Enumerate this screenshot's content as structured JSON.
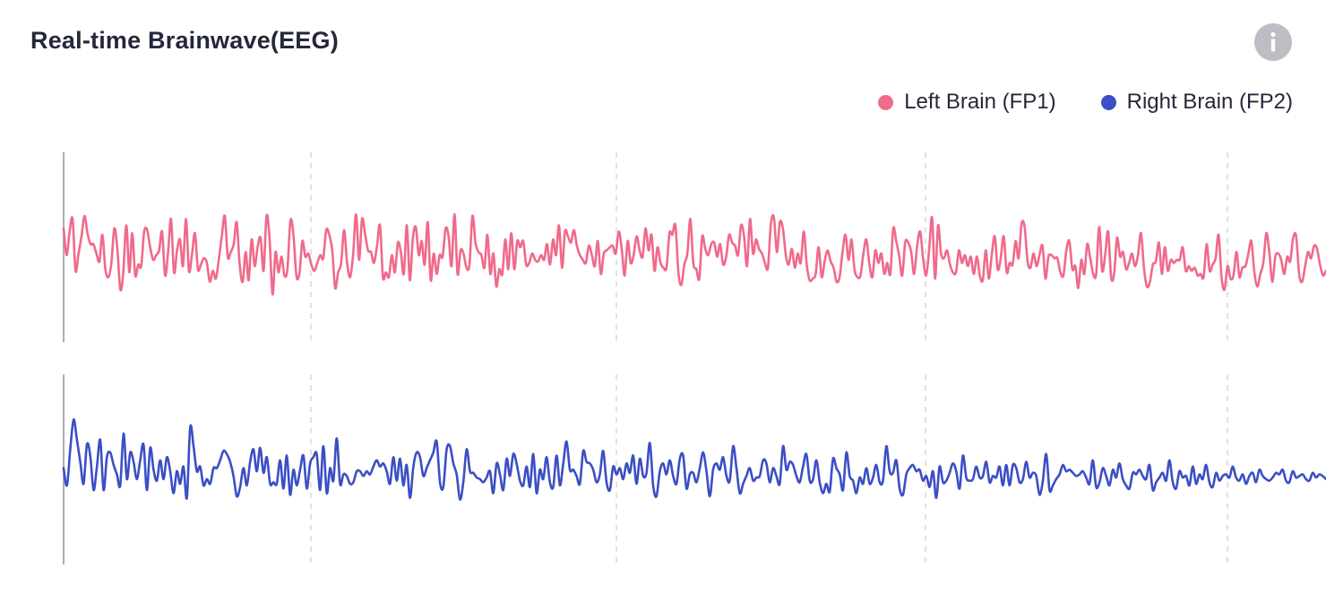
{
  "header": {
    "title": "Real-time Brainwave(EEG)",
    "info_icon": "info-icon"
  },
  "colors": {
    "left": "#f06a8a",
    "right": "#3b4fc4",
    "grid": "#d4d4d8",
    "axis": "#9a9aa0",
    "info_bg": "#bdbdc3"
  },
  "chart_data": {
    "type": "line",
    "title": "Real-time Brainwave(EEG)",
    "legend_position": "top-right",
    "grid": "vertical dashed",
    "x_ticks": 4,
    "series": [
      {
        "name": "Left Brain (FP1)",
        "channel": "FP1",
        "color": "#f06a8a",
        "values": [
          12,
          -5,
          10,
          18,
          -15,
          -4,
          7,
          20,
          9,
          2,
          2,
          -4,
          -9,
          8,
          -14,
          -19,
          -10,
          12,
          -1,
          -27,
          -16,
          14,
          -16,
          9,
          -18,
          -11,
          -12,
          10,
          11,
          0,
          -8,
          -5,
          -2,
          10,
          -18,
          -3,
          18,
          -16,
          -2,
          5,
          -12,
          18,
          -15,
          -5,
          9,
          -14,
          -11,
          -7,
          -10,
          -22,
          -15,
          -20,
          -8,
          7,
          20,
          -6,
          -3,
          2,
          16,
          -11,
          -22,
          -3,
          -21,
          5,
          -12,
          0,
          6,
          -15,
          20,
          6,
          -30,
          -3,
          -16,
          -6,
          -18,
          -14,
          17,
          8,
          -18,
          -17,
          4,
          -6,
          -4,
          -11,
          -15,
          -10,
          -5,
          -7,
          11,
          8,
          -2,
          -26,
          -16,
          -10,
          11,
          -10,
          -19,
          -5,
          21,
          -8,
          18,
          9,
          -2,
          -3,
          -10,
          1,
          14,
          -19,
          -16,
          -19,
          -5,
          -16,
          3,
          -3,
          -17,
          14,
          -21,
          5,
          13,
          -5,
          4,
          -11,
          16,
          -21,
          -4,
          -17,
          -5,
          -6,
          12,
          7,
          -12,
          21,
          -17,
          -2,
          -4,
          -13,
          -11,
          20,
          3,
          -3,
          -5,
          -13,
          8,
          -17,
          -4,
          -25,
          -14,
          -17,
          5,
          -14,
          9,
          -14,
          4,
          0,
          4,
          -11,
          -10,
          -4,
          -8,
          -9,
          -5,
          -8,
          2,
          -11,
          5,
          -5,
          14,
          -13,
          10,
          7,
          3,
          11,
          1,
          -5,
          -8,
          -10,
          1,
          -5,
          -12,
          4,
          -17,
          -4,
          -2,
          0,
          1,
          -4,
          10,
          -1,
          -18,
          4,
          -10,
          -5,
          7,
          -2,
          -6,
          12,
          -2,
          8,
          -15,
          0,
          -10,
          -13,
          -13,
          9,
          8,
          14,
          -16,
          -24,
          -11,
          -4,
          18,
          -10,
          -14,
          -20,
          7,
          -1,
          -5,
          2,
          3,
          -6,
          2,
          -11,
          -6,
          8,
          3,
          1,
          -5,
          14,
          7,
          -12,
          18,
          -4,
          5,
          -1,
          -4,
          -10,
          -13,
          15,
          19,
          -3,
          16,
          12,
          -5,
          -11,
          -1,
          -13,
          -4,
          -10,
          10,
          -11,
          -21,
          -20,
          -17,
          0,
          -19,
          -9,
          -2,
          -9,
          -13,
          -22,
          -19,
          -3,
          8,
          -8,
          5,
          -14,
          -19,
          -18,
          -4,
          5,
          -11,
          -19,
          -2,
          -10,
          -4,
          -17,
          -10,
          -17,
          12,
          4,
          -6,
          -18,
          3,
          3,
          -3,
          -17,
          1,
          10,
          -7,
          -18,
          -2,
          19,
          -20,
          14,
          -4,
          -7,
          -2,
          -11,
          -16,
          -16,
          -2,
          -10,
          -5,
          -12,
          -6,
          -17,
          -6,
          -18,
          -21,
          -2,
          -20,
          -5,
          7,
          -14,
          -7,
          7,
          -16,
          -10,
          -11,
          4,
          -7,
          15,
          13,
          -9,
          -13,
          -4,
          -12,
          -5,
          1,
          -20,
          -6,
          -5,
          -7,
          -7,
          -16,
          -18,
          -2,
          4,
          -14,
          -12,
          -26,
          -8,
          -17,
          2,
          -7,
          -17,
          -17,
          13,
          -15,
          -5,
          10,
          -19,
          -17,
          6,
          -6,
          -3,
          -14,
          -10,
          -4,
          -12,
          -5,
          9,
          -13,
          -25,
          -22,
          -11,
          -9,
          3,
          -17,
          0,
          -15,
          -8,
          -10,
          -8,
          -8,
          0,
          -15,
          -12,
          -15,
          -13,
          -18,
          -17,
          -19,
          2,
          -15,
          -11,
          -7,
          8,
          -19,
          -27,
          -12,
          -20,
          -18,
          -3,
          -19,
          -13,
          -12,
          -4,
          4,
          -16,
          -25,
          -17,
          -10,
          9,
          -3,
          -22,
          -6,
          -4,
          -8,
          -17,
          -6,
          -9,
          6,
          7,
          -17,
          -22,
          -12,
          -3,
          -7,
          1,
          -1,
          -11,
          -18,
          -15
        ]
      },
      {
        "name": "Right Brain (FP2)",
        "channel": "FP2",
        "color": "#3b4fc4",
        "values": [
          -6,
          -17,
          6,
          25,
          12,
          -2,
          -16,
          9,
          2,
          -20,
          -5,
          12,
          -20,
          1,
          4,
          -4,
          -10,
          -17,
          16,
          -13,
          4,
          -2,
          -13,
          -1,
          9,
          -20,
          7,
          -7,
          -14,
          -1,
          -13,
          1,
          -8,
          -22,
          -8,
          -16,
          -5,
          -25,
          20,
          8,
          -8,
          -5,
          -17,
          -13,
          -16,
          -6,
          -6,
          -1,
          5,
          3,
          -2,
          -11,
          -24,
          -18,
          -6,
          -17,
          -2,
          6,
          -8,
          7,
          -9,
          1,
          -16,
          -15,
          -16,
          -1,
          -19,
          2,
          -23,
          -7,
          -17,
          -7,
          2,
          -19,
          -3,
          1,
          3,
          -20,
          8,
          -22,
          -6,
          -14,
          13,
          -16,
          -10,
          -11,
          -16,
          -15,
          -8,
          -8,
          -11,
          -8,
          -10,
          -5,
          -1,
          -5,
          -3,
          -8,
          -16,
          1,
          -14,
          0,
          -17,
          -4,
          -25,
          -5,
          4,
          1,
          -11,
          -6,
          -1,
          4,
          11,
          -15,
          -18,
          6,
          8,
          -3,
          -10,
          -26,
          -15,
          6,
          -8,
          -9,
          -12,
          -13,
          -15,
          -12,
          -8,
          -22,
          -3,
          -10,
          -20,
          0,
          -11,
          3,
          -3,
          -14,
          -17,
          -5,
          -18,
          3,
          -22,
          -7,
          -13,
          1,
          -15,
          -18,
          2,
          -17,
          -3,
          11,
          -7,
          -7,
          -11,
          -16,
          5,
          -2,
          -3,
          -7,
          -15,
          -10,
          5,
          -15,
          -20,
          -5,
          -10,
          -6,
          -13,
          -3,
          -9,
          2,
          -16,
          0,
          -11,
          -9,
          10,
          -17,
          -24,
          -8,
          -3,
          -10,
          -1,
          -11,
          -16,
          0,
          2,
          -19,
          -10,
          -9,
          -15,
          -6,
          4,
          -8,
          -24,
          -7,
          -3,
          -7,
          1,
          -11,
          -14,
          8,
          -6,
          -22,
          -16,
          -11,
          -6,
          -14,
          -12,
          -11,
          -1,
          -3,
          -15,
          -6,
          -11,
          -16,
          8,
          -7,
          -2,
          -4,
          -11,
          -15,
          -5,
          3,
          -14,
          -13,
          -1,
          -15,
          -22,
          -16,
          -21,
          0,
          -6,
          -10,
          -20,
          4,
          -11,
          -14,
          -22,
          -12,
          -16,
          -6,
          -16,
          -12,
          -4,
          -15,
          -14,
          8,
          -8,
          -9,
          -1,
          -19,
          -23,
          -10,
          -6,
          -4,
          -8,
          -7,
          -14,
          -11,
          -18,
          -8,
          -25,
          -5,
          -15,
          -14,
          -9,
          -3,
          -8,
          -19,
          2,
          -12,
          -14,
          -13,
          -5,
          -12,
          -11,
          -2,
          -15,
          -11,
          -12,
          -5,
          -17,
          -4,
          -17,
          -4,
          -6,
          -15,
          -13,
          -2,
          -12,
          -9,
          -11,
          -23,
          -14,
          3,
          -20,
          -17,
          -13,
          -10,
          -4,
          -8,
          -7,
          -9,
          -11,
          -10,
          -8,
          -12,
          -16,
          -1,
          -18,
          -15,
          -6,
          -11,
          -17,
          -7,
          -12,
          -3,
          -13,
          -17,
          -19,
          -9,
          -10,
          -7,
          -11,
          -13,
          -4,
          -20,
          -15,
          -12,
          -9,
          -14,
          -1,
          -15,
          -19,
          -8,
          -12,
          -11,
          -17,
          -5,
          -16,
          -10,
          -13,
          -4,
          -15,
          -18,
          -9,
          -14,
          -11,
          -10,
          -12,
          -5,
          -12,
          -14,
          -10,
          -16,
          -11,
          -9,
          -15,
          -7,
          -11,
          -13,
          -14,
          -12,
          -9,
          -10,
          -7,
          -14,
          -15,
          -8,
          -12,
          -11,
          -10,
          -13,
          -14,
          -9,
          -12,
          -10,
          -11,
          -13
        ]
      }
    ]
  }
}
